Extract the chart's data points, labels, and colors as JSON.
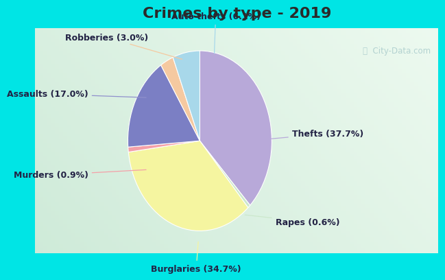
{
  "title": "Crimes by type - 2019",
  "slices": [
    {
      "label": "Thefts",
      "pct": 37.7,
      "color": "#b8a9d9"
    },
    {
      "label": "Rapes",
      "pct": 0.6,
      "color": "#cce8cc"
    },
    {
      "label": "Burglaries",
      "pct": 34.7,
      "color": "#f5f5a0"
    },
    {
      "label": "Murders",
      "pct": 0.9,
      "color": "#f4a0a8"
    },
    {
      "label": "Assaults",
      "pct": 17.0,
      "color": "#7b7fc4"
    },
    {
      "label": "Robberies",
      "pct": 3.0,
      "color": "#f5c9a0"
    },
    {
      "label": "Auto thefts",
      "pct": 6.1,
      "color": "#a8d8ea"
    }
  ],
  "title_fontsize": 16,
  "label_fontsize": 9,
  "bg_cyan": "#00e5e5",
  "bg_chart_light": "#e8f5ee",
  "bg_chart_dark": "#c2ddd4",
  "title_color": "#2a2a2a",
  "label_color": "#222244",
  "watermark": "ⓘ  City-Data.com",
  "watermark_color": "#aacccc"
}
